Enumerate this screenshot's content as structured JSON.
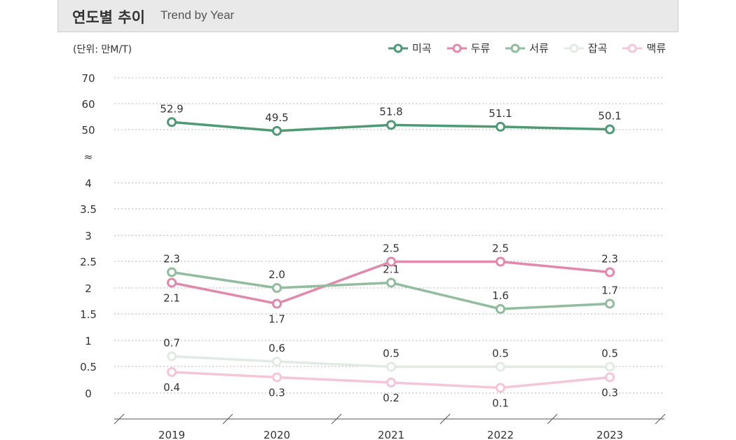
{
  "header": {
    "title": "연도별 추이",
    "subtitle": "Trend by Year"
  },
  "unit_label": "(단위: 만M/T)",
  "legend": [
    {
      "name": "미곡",
      "color": "#4f9a75"
    },
    {
      "name": "두류",
      "color": "#e089ac"
    },
    {
      "name": "서류",
      "color": "#91bc9d"
    },
    {
      "name": "잡곡",
      "color": "#e2ebe3"
    },
    {
      "name": "맥류",
      "color": "#f4c6d7"
    }
  ],
  "chart_data": {
    "type": "line",
    "categories": [
      "2019",
      "2020",
      "2021",
      "2022",
      "2023"
    ],
    "y_ticks": [
      "70",
      "60",
      "50",
      "≈",
      "4",
      "3.5",
      "3",
      "2.5",
      "2",
      "1.5",
      "1",
      "0.5",
      "0"
    ],
    "y_axis_break": true,
    "upper_ylim": [
      50,
      70
    ],
    "lower_ylim": [
      0,
      4
    ],
    "grid": true,
    "legend_position": "top-right",
    "series": [
      {
        "name": "미곡",
        "color": "#4f9a75",
        "values": [
          52.9,
          49.5,
          51.8,
          51.1,
          50.1
        ],
        "labels": [
          "52.9",
          "49.5",
          "51.8",
          "51.1",
          "50.1"
        ],
        "label_pos": [
          "above",
          "above",
          "above",
          "above",
          "above"
        ]
      },
      {
        "name": "두류",
        "color": "#e089ac",
        "values": [
          2.1,
          1.7,
          2.5,
          2.5,
          2.3
        ],
        "labels": [
          "2.1",
          "1.7",
          "2.5",
          "2.5",
          "2.3"
        ],
        "label_pos": [
          "below",
          "below",
          "above",
          "above",
          "above"
        ]
      },
      {
        "name": "서류",
        "color": "#91bc9d",
        "values": [
          2.3,
          2.0,
          2.1,
          1.6,
          1.7
        ],
        "labels": [
          "2.3",
          "2.0",
          "2.1",
          "1.6",
          "1.7"
        ],
        "label_pos": [
          "above",
          "above",
          "above",
          "above",
          "above"
        ]
      },
      {
        "name": "잡곡",
        "color": "#e2ebe3",
        "values": [
          0.7,
          0.6,
          0.5,
          0.5,
          0.5
        ],
        "labels": [
          "0.7",
          "0.6",
          "0.5",
          "0.5",
          "0.5"
        ],
        "label_pos": [
          "above",
          "above",
          "above",
          "above",
          "above"
        ]
      },
      {
        "name": "맥류",
        "color": "#f4c6d7",
        "values": [
          0.4,
          0.3,
          0.2,
          0.1,
          0.3
        ],
        "labels": [
          "0.4",
          "0.3",
          "0.2",
          "0.1",
          "0.3"
        ],
        "label_pos": [
          "below",
          "below",
          "below",
          "below",
          "below"
        ]
      }
    ]
  }
}
